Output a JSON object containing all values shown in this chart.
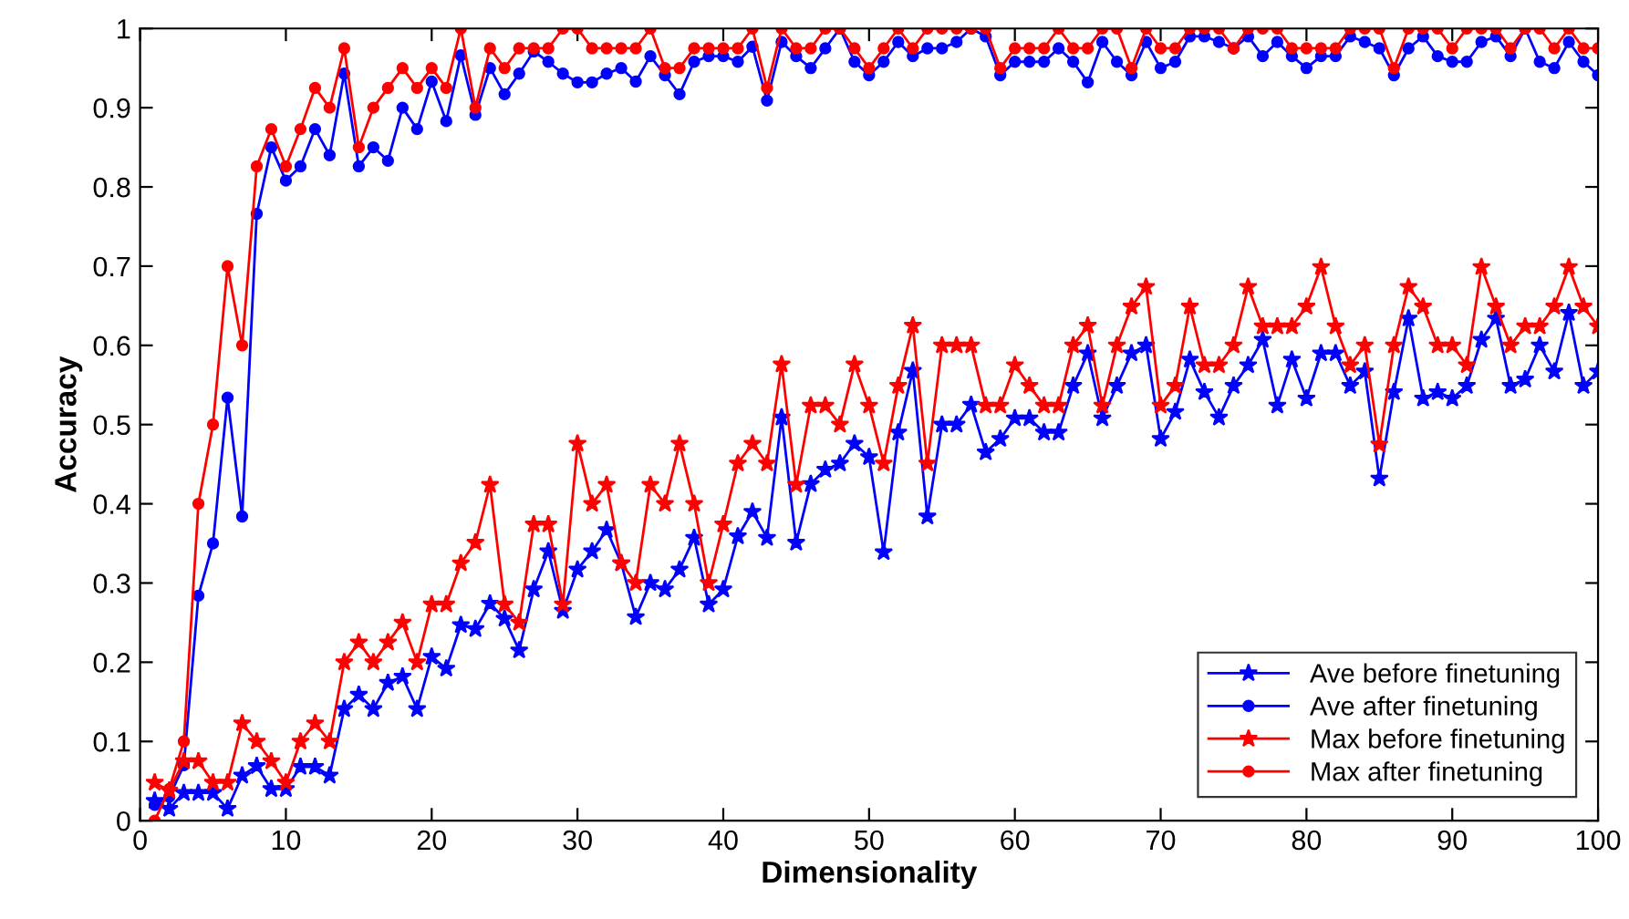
{
  "chart_data": {
    "type": "line",
    "xlabel": "Dimensionality",
    "ylabel": "Accuracy",
    "x": [
      1,
      2,
      3,
      4,
      5,
      6,
      7,
      8,
      9,
      10,
      11,
      12,
      13,
      14,
      15,
      16,
      17,
      18,
      19,
      20,
      21,
      22,
      23,
      24,
      25,
      26,
      27,
      28,
      29,
      30,
      31,
      32,
      33,
      34,
      35,
      36,
      37,
      38,
      39,
      40,
      41,
      42,
      43,
      44,
      45,
      46,
      47,
      48,
      49,
      50,
      51,
      52,
      53,
      54,
      55,
      56,
      57,
      58,
      59,
      60,
      61,
      62,
      63,
      64,
      65,
      66,
      67,
      68,
      69,
      70,
      71,
      72,
      73,
      74,
      75,
      76,
      77,
      78,
      79,
      80,
      81,
      82,
      83,
      84,
      85,
      86,
      87,
      88,
      89,
      90,
      91,
      92,
      93,
      94,
      95,
      96,
      97,
      98,
      99,
      100
    ],
    "series": [
      {
        "name": "Ave before finetuning",
        "color": "#0000ff",
        "marker": "star",
        "values": [
          0.025,
          0.015,
          0.035,
          0.035,
          0.035,
          0.015,
          0.057,
          0.069,
          0.04,
          0.04,
          0.068,
          0.068,
          0.057,
          0.141,
          0.159,
          0.141,
          0.174,
          0.182,
          0.141,
          0.207,
          0.192,
          0.247,
          0.242,
          0.274,
          0.255,
          0.215,
          0.292,
          0.34,
          0.265,
          0.317,
          0.34,
          0.367,
          0.325,
          0.257,
          0.3,
          0.292,
          0.317,
          0.357,
          0.273,
          0.292,
          0.359,
          0.39,
          0.357,
          0.509,
          0.351,
          0.425,
          0.443,
          0.451,
          0.476,
          0.459,
          0.339,
          0.49,
          0.568,
          0.384,
          0.5,
          0.5,
          0.525,
          0.465,
          0.482,
          0.508,
          0.508,
          0.49,
          0.49,
          0.549,
          0.59,
          0.508,
          0.549,
          0.59,
          0.6,
          0.482,
          0.516,
          0.582,
          0.541,
          0.509,
          0.549,
          0.575,
          0.607,
          0.524,
          0.582,
          0.533,
          0.59,
          0.59,
          0.549,
          0.567,
          0.432,
          0.541,
          0.634,
          0.533,
          0.541,
          0.533,
          0.549,
          0.607,
          0.634,
          0.549,
          0.557,
          0.6,
          0.567,
          0.641,
          0.549,
          0.567
        ]
      },
      {
        "name": "Ave after finetuning",
        "color": "#0000ff",
        "marker": "circle",
        "values": [
          0.02,
          0.03,
          0.07,
          0.284,
          0.35,
          0.534,
          0.384,
          0.766,
          0.85,
          0.808,
          0.826,
          0.873,
          0.84,
          0.943,
          0.826,
          0.85,
          0.833,
          0.9,
          0.873,
          0.933,
          0.883,
          0.966,
          0.891,
          0.95,
          0.917,
          0.943,
          0.971,
          0.958,
          0.943,
          0.932,
          0.932,
          0.943,
          0.95,
          0.933,
          0.965,
          0.941,
          0.917,
          0.958,
          0.965,
          0.965,
          0.958,
          0.977,
          0.909,
          0.983,
          0.965,
          0.95,
          0.975,
          1,
          0.958,
          0.941,
          0.958,
          0.983,
          0.965,
          0.975,
          0.975,
          0.983,
          1,
          0.99,
          0.941,
          0.958,
          0.958,
          0.958,
          0.975,
          0.958,
          0.932,
          0.983,
          0.958,
          0.941,
          0.983,
          0.95,
          0.958,
          0.99,
          0.99,
          0.983,
          0.975,
          0.99,
          0.965,
          0.983,
          0.965,
          0.95,
          0.965,
          0.965,
          0.99,
          0.983,
          0.975,
          0.941,
          0.975,
          0.99,
          0.965,
          0.958,
          0.958,
          0.983,
          0.99,
          0.965,
          1,
          0.958,
          0.95,
          0.983,
          0.958,
          0.941
        ]
      },
      {
        "name": "Max before finetuning",
        "color": "#ff0000",
        "marker": "star",
        "values": [
          0.048,
          0.038,
          0.075,
          0.075,
          0.048,
          0.048,
          0.123,
          0.1,
          0.075,
          0.048,
          0.1,
          0.123,
          0.1,
          0.2,
          0.225,
          0.2,
          0.225,
          0.25,
          0.2,
          0.273,
          0.273,
          0.325,
          0.351,
          0.424,
          0.273,
          0.25,
          0.374,
          0.374,
          0.273,
          0.476,
          0.4,
          0.424,
          0.325,
          0.3,
          0.424,
          0.4,
          0.476,
          0.4,
          0.3,
          0.374,
          0.451,
          0.476,
          0.451,
          0.576,
          0.424,
          0.524,
          0.524,
          0.5,
          0.576,
          0.524,
          0.451,
          0.549,
          0.625,
          0.451,
          0.6,
          0.6,
          0.6,
          0.524,
          0.524,
          0.575,
          0.549,
          0.524,
          0.524,
          0.6,
          0.625,
          0.524,
          0.6,
          0.649,
          0.674,
          0.524,
          0.549,
          0.649,
          0.575,
          0.575,
          0.6,
          0.674,
          0.624,
          0.624,
          0.624,
          0.649,
          0.699,
          0.624,
          0.575,
          0.6,
          0.475,
          0.6,
          0.674,
          0.649,
          0.6,
          0.6,
          0.575,
          0.699,
          0.649,
          0.6,
          0.624,
          0.624,
          0.649,
          0.699,
          0.649,
          0.624
        ]
      },
      {
        "name": "Max after finetuning",
        "color": "#ff0000",
        "marker": "circle",
        "values": [
          0,
          0.04,
          0.1,
          0.4,
          0.5,
          0.7,
          0.6,
          0.826,
          0.873,
          0.826,
          0.873,
          0.925,
          0.9,
          0.975,
          0.85,
          0.9,
          0.925,
          0.95,
          0.925,
          0.95,
          0.925,
          1,
          0.9,
          0.975,
          0.95,
          0.975,
          0.975,
          0.975,
          1,
          1,
          0.975,
          0.975,
          0.975,
          0.975,
          1,
          0.95,
          0.95,
          0.975,
          0.975,
          0.975,
          0.975,
          1,
          0.925,
          1,
          0.975,
          0.975,
          1,
          1,
          0.975,
          0.95,
          0.975,
          1,
          0.975,
          1,
          1,
          1,
          1,
          1,
          0.95,
          0.975,
          0.975,
          0.975,
          1,
          0.975,
          0.975,
          1,
          1,
          0.95,
          1,
          0.975,
          0.975,
          1,
          1,
          1,
          0.975,
          1,
          1,
          1,
          0.975,
          0.975,
          0.975,
          0.975,
          1,
          1,
          1,
          0.95,
          1,
          1,
          1,
          0.975,
          1,
          1,
          1,
          0.975,
          1,
          1,
          0.975,
          1,
          0.975,
          0.975
        ]
      }
    ],
    "xlim": [
      0,
      100
    ],
    "ylim": [
      0,
      1
    ],
    "xticks": [
      0,
      10,
      20,
      30,
      40,
      50,
      60,
      70,
      80,
      90,
      100
    ],
    "yticks": [
      0,
      0.1,
      0.2,
      0.3,
      0.4,
      0.5,
      0.6,
      0.7,
      0.8,
      0.9,
      1
    ],
    "legend": "bottom right",
    "line_style": "solid",
    "grid": false
  }
}
